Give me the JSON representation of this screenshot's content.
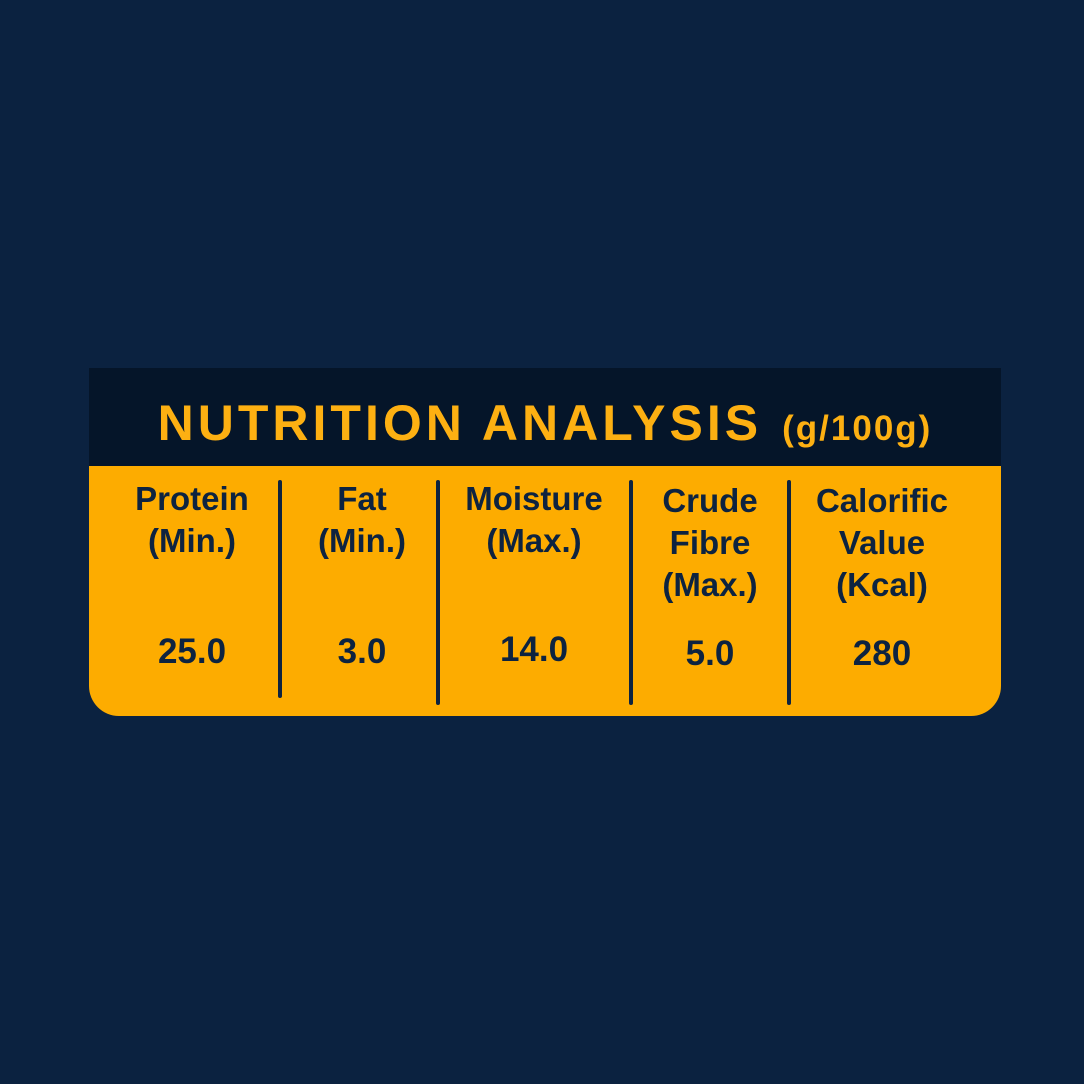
{
  "title": {
    "main": "NUTRITION ANALYSIS",
    "unit": "(g/100g)"
  },
  "columns": [
    {
      "label": "Protein\n(Min.)",
      "value": "25.0"
    },
    {
      "label": "Fat\n(Min.)",
      "value": "3.0"
    },
    {
      "label": "Moisture\n(Max.)",
      "value": "14.0"
    },
    {
      "label": "Crude\nFibre\n(Max.)",
      "value": "5.0"
    },
    {
      "label": "Calorific\nValue\n(Kcal)",
      "value": "280"
    }
  ],
  "colors": {
    "background": "#0b2240",
    "header_band": "#051529",
    "accent": "#fdb012",
    "table_fill": "#fdac00",
    "table_text": "#0d2340"
  }
}
